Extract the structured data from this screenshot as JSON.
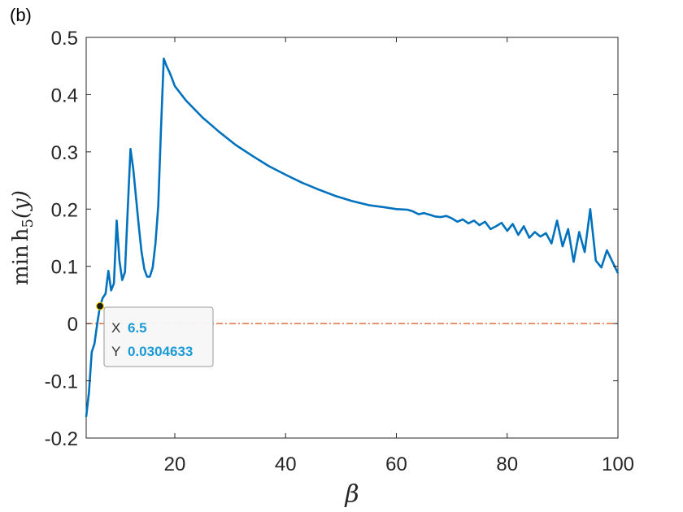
{
  "panel_label": "(b)",
  "colors": {
    "series": "#0072BD",
    "reference_line": "#D95319",
    "axis": "#262626",
    "tooltip_value": "#1a9ad6"
  },
  "datatip": {
    "x_key": "X",
    "x_value": "6.5",
    "y_key": "Y",
    "y_value": "0.0304633"
  },
  "chart_data": {
    "type": "line",
    "xlabel": "β",
    "ylabel_main": "min",
    "ylabel_func": "h",
    "ylabel_sub": "5",
    "ylabel_arg": "(y)",
    "xlim": [
      4,
      100
    ],
    "ylim": [
      -0.2,
      0.5
    ],
    "xticks": [
      20,
      40,
      60,
      80,
      100
    ],
    "yticks": [
      -0.2,
      -0.1,
      0,
      0.1,
      0.2,
      0.3,
      0.4,
      0.5
    ],
    "ytick_labels": [
      "-0.2",
      "-0.1",
      "0",
      "0.1",
      "0.2",
      "0.3",
      "0.4",
      "0.5"
    ],
    "grid": false,
    "box": true,
    "reference_line": {
      "y": 0,
      "style": "dash-dot"
    },
    "datatip_point": {
      "x": 6.5,
      "y": 0.0304633
    },
    "series": [
      {
        "x": [
          4,
          4.5,
          5,
          5.5,
          6,
          6.5,
          7,
          7.5,
          8,
          8.5,
          9,
          9.5,
          10,
          10.5,
          11,
          11.5,
          12,
          12.5,
          13,
          13.5,
          14,
          14.5,
          15,
          15.5,
          16,
          16.5,
          17,
          17.5,
          18,
          18.5,
          19,
          19.5,
          20,
          22,
          25,
          28,
          31,
          34,
          37,
          40,
          43,
          46,
          49,
          52,
          55,
          58,
          60,
          62,
          63,
          64,
          65,
          66,
          67,
          68,
          69,
          70,
          71,
          72,
          73,
          74,
          75,
          76,
          77,
          78,
          79,
          80,
          81,
          82,
          83,
          84,
          85,
          86,
          87,
          88,
          89,
          90,
          91,
          92,
          93,
          94,
          95,
          96,
          97,
          98,
          99,
          100
        ],
        "y": [
          -0.163,
          -0.12,
          -0.05,
          -0.035,
          0.0,
          0.0305,
          0.045,
          0.052,
          0.092,
          0.058,
          0.07,
          0.18,
          0.11,
          0.076,
          0.09,
          0.2,
          0.305,
          0.27,
          0.22,
          0.17,
          0.125,
          0.095,
          0.082,
          0.082,
          0.098,
          0.14,
          0.205,
          0.34,
          0.463,
          0.45,
          0.44,
          0.428,
          0.415,
          0.39,
          0.36,
          0.335,
          0.312,
          0.293,
          0.275,
          0.26,
          0.246,
          0.234,
          0.223,
          0.214,
          0.207,
          0.203,
          0.2,
          0.199,
          0.196,
          0.191,
          0.193,
          0.19,
          0.187,
          0.186,
          0.188,
          0.184,
          0.178,
          0.182,
          0.175,
          0.18,
          0.172,
          0.178,
          0.165,
          0.17,
          0.176,
          0.162,
          0.174,
          0.155,
          0.17,
          0.15,
          0.16,
          0.152,
          0.158,
          0.14,
          0.18,
          0.135,
          0.165,
          0.108,
          0.16,
          0.125,
          0.2,
          0.11,
          0.098,
          0.128,
          0.108,
          0.088
        ],
        "color": "#0072BD"
      }
    ]
  }
}
